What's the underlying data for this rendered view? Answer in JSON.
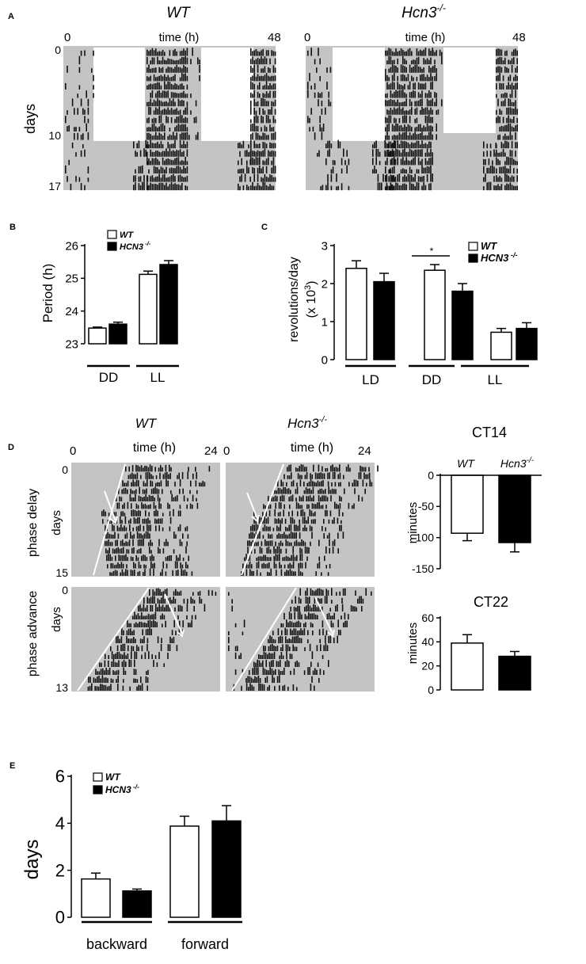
{
  "panel_A": {
    "letter": "A",
    "left": {
      "title": "WT",
      "time_start": "0",
      "time_label": "time (h)",
      "time_end": "48"
    },
    "right": {
      "title": "Hcn3",
      "title_sup": "-/-",
      "time_start": "0",
      "time_label": "time (h)",
      "time_end": "48"
    },
    "ylabel": "days",
    "day_ticks": [
      "0",
      "10",
      "17"
    ]
  },
  "panel_D": {
    "letter": "D",
    "left": {
      "title": "WT",
      "time_start": "0",
      "time_label": "time (h)",
      "time_end": "24"
    },
    "right": {
      "title": "Hcn3",
      "title_sup": "-/-",
      "time_start": "0",
      "time_label": "time (h)",
      "time_end": "24"
    },
    "rows": [
      {
        "label": "phase delay",
        "days_label": "days",
        "top": "0",
        "bottom": "15"
      },
      {
        "label": "phase advance",
        "days_label": "days",
        "top": "0",
        "bottom": "13"
      }
    ]
  },
  "chart_data": [
    {
      "id": "B",
      "type": "bar",
      "letter": "B",
      "ylabel": "Period (h)",
      "ylim": [
        23,
        26
      ],
      "yticks": [
        23,
        24,
        25,
        26
      ],
      "groups": [
        "DD",
        "LL"
      ],
      "legend": [
        {
          "name": "WT",
          "fill": "#ffffff"
        },
        {
          "name": "HCN3",
          "sup": "-/-",
          "fill": "#000000"
        }
      ],
      "series": [
        {
          "name": "WT",
          "values": [
            23.48,
            25.12
          ],
          "errors": [
            0.03,
            0.1
          ]
        },
        {
          "name": "HCN3-/-",
          "values": [
            23.6,
            25.42
          ],
          "errors": [
            0.06,
            0.12
          ]
        }
      ]
    },
    {
      "id": "C",
      "type": "bar",
      "letter": "C",
      "ylabel": "revolutions/day",
      "ylabel2": "(x 10",
      "ylabel2_sup": "3",
      "ylabel2_end": ")",
      "ylim": [
        0,
        3
      ],
      "yticks": [
        0,
        1,
        2,
        3
      ],
      "groups": [
        "LD",
        "DD",
        "LL"
      ],
      "legend": [
        {
          "name": "WT",
          "fill": "#ffffff"
        },
        {
          "name": "HCN3",
          "sup": "-/-",
          "fill": "#000000"
        }
      ],
      "significance": "*",
      "series": [
        {
          "name": "WT",
          "values": [
            2.4,
            2.35,
            0.72
          ],
          "errors": [
            0.2,
            0.15,
            0.1
          ]
        },
        {
          "name": "HCN3-/-",
          "values": [
            2.05,
            1.8,
            0.82
          ],
          "errors": [
            0.22,
            0.2,
            0.15
          ]
        }
      ]
    },
    {
      "id": "D1",
      "type": "bar",
      "title": "CT14",
      "ylabel": "minutes",
      "ylim": [
        -150,
        0
      ],
      "yticks": [
        0,
        -50,
        -100,
        -150
      ],
      "categories": [
        "WT",
        "Hcn3"
      ],
      "category_sup": [
        "",
        "-/-"
      ],
      "values": [
        -93,
        -108
      ],
      "errors": [
        12,
        15
      ],
      "fills": [
        "#ffffff",
        "#000000"
      ]
    },
    {
      "id": "D2",
      "type": "bar",
      "title": "CT22",
      "ylabel": "minutes",
      "ylim": [
        0,
        60
      ],
      "yticks": [
        0,
        20,
        40,
        60
      ],
      "values": [
        39,
        28
      ],
      "errors": [
        7,
        4
      ],
      "fills": [
        "#ffffff",
        "#000000"
      ]
    },
    {
      "id": "E",
      "type": "bar",
      "letter": "E",
      "ylabel": "days",
      "ylim": [
        0,
        6
      ],
      "yticks": [
        0,
        2,
        4,
        6
      ],
      "groups": [
        "backward",
        "forward"
      ],
      "legend": [
        {
          "name": "WT",
          "fill": "#ffffff"
        },
        {
          "name": "HCN3",
          "sup": "-/-",
          "fill": "#000000"
        }
      ],
      "series": [
        {
          "name": "WT",
          "values": [
            1.63,
            3.88
          ],
          "errors": [
            0.25,
            0.42
          ]
        },
        {
          "name": "HCN3-/-",
          "values": [
            1.12,
            4.1
          ],
          "errors": [
            0.08,
            0.65
          ]
        }
      ]
    }
  ]
}
